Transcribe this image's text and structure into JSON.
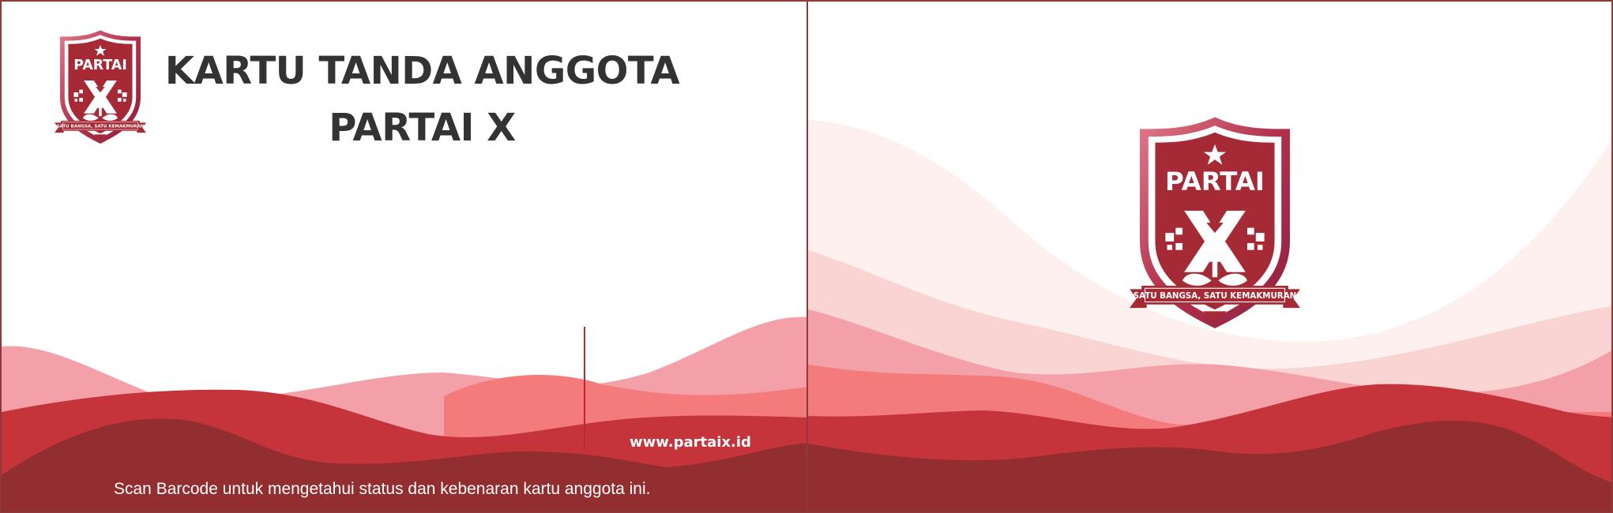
{
  "front": {
    "title_line1": "KARTU TANDA ANGGOTA",
    "title_line2": "PARTAI X",
    "website": "www.partaix.id",
    "scan_note": "Scan Barcode untuk mengetahui status dan kebenaran kartu anggota ini."
  },
  "logo": {
    "name": "PARTAI",
    "slogan": "SATU BANGSA, SATU KEMAKMURAN",
    "icon": "shield-x-emblem-icon"
  },
  "colors": {
    "brand_red": "#a52a35",
    "dark_red": "#922d30",
    "mid_red": "#c4343a",
    "salmon": "#f47b7c",
    "pink": "#f4a0a8",
    "light_pink": "#fad3d3",
    "pale_pink": "#fdf0ee",
    "title_text": "#333333"
  }
}
